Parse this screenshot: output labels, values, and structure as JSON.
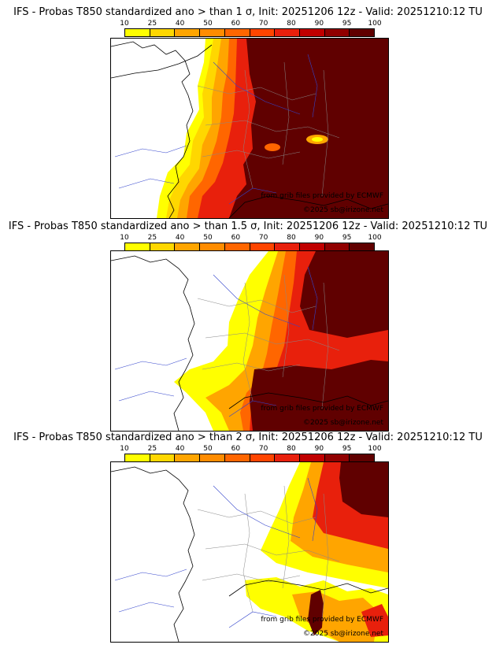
{
  "colors": {
    "scale": [
      "#ffff00",
      "#ffd700",
      "#ffa500",
      "#ff8c00",
      "#ff6600",
      "#ff4500",
      "#e8200c",
      "#c00000",
      "#900000",
      "#600000"
    ],
    "sea": "#ffffff",
    "borders": "#888888",
    "rivers": "#3344cc",
    "coast": "#000000"
  },
  "colorbar": {
    "ticks": [
      "10",
      "25",
      "40",
      "50",
      "60",
      "70",
      "80",
      "90",
      "95",
      "100"
    ]
  },
  "panels": [
    {
      "title": "IFS - Probas T850  standardized ano > than 1 σ, Init: 20251206 12z - Valid: 20251210:12 TU",
      "credit_source": "from grib files provided by ECMWF",
      "credit_copyright": "©2025 sb@irizone.net"
    },
    {
      "title": "IFS - Probas T850  standardized ano > than 1.5 σ, Init: 20251206 12z - Valid: 20251210:12 TU",
      "credit_source": "from grib files provided by ECMWF",
      "credit_copyright": "©2025 sb@irizone.net"
    },
    {
      "title": "IFS - Probas T850  standardized ano > than 2 σ, Init: 20251206 12z - Valid: 20251210:12 TU",
      "credit_source": "from grib files provided by ECMWF",
      "credit_copyright": "©2025 sb@irizone.net"
    }
  ]
}
